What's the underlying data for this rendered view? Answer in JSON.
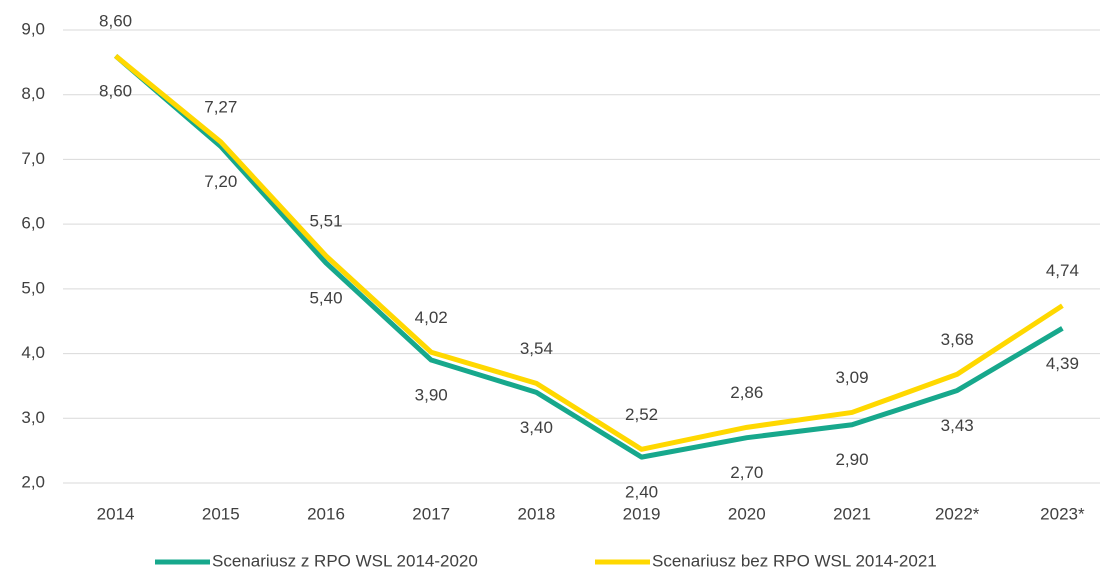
{
  "chart_data": {
    "type": "line",
    "categories": [
      "2014",
      "2015",
      "2016",
      "2017",
      "2018",
      "2019",
      "2020",
      "2021",
      "2022*",
      "2023*"
    ],
    "series": [
      {
        "name": "Scenariusz z RPO WSL 2014-2020",
        "color": "#17a88c",
        "values": [
          8.6,
          7.2,
          5.4,
          3.9,
          3.4,
          2.4,
          2.7,
          2.9,
          3.43,
          4.39
        ],
        "value_labels": [
          "8,60",
          "7,20",
          "5,40",
          "3,90",
          "3,40",
          "2,40",
          "2,70",
          "2,90",
          "3,43",
          "4,39"
        ]
      },
      {
        "name": "Scenariusz bez RPO WSL 2014-2021",
        "color": "#ffd800",
        "values": [
          8.6,
          7.27,
          5.51,
          4.02,
          3.54,
          2.52,
          2.86,
          3.09,
          3.68,
          4.74
        ],
        "value_labels": [
          "8,60",
          "7,27",
          "5,51",
          "4,02",
          "3,54",
          "2,52",
          "2,86",
          "3,09",
          "3,68",
          "4,74"
        ]
      }
    ],
    "ylim": [
      2,
      9
    ],
    "yticks": [
      {
        "value": 2,
        "label": "2,0"
      },
      {
        "value": 3,
        "label": "3,0"
      },
      {
        "value": 4,
        "label": "4,0"
      },
      {
        "value": 5,
        "label": "5,0"
      },
      {
        "value": 6,
        "label": "6,0"
      },
      {
        "value": 7,
        "label": "7,0"
      },
      {
        "value": 8,
        "label": "8,0"
      },
      {
        "value": 9,
        "label": "9,0"
      }
    ],
    "grid": true,
    "legend": "bottom"
  }
}
